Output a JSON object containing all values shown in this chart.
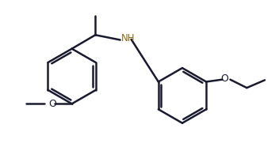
{
  "bg_color": "#ffffff",
  "line_color": "#1a1a2e",
  "nh_color": "#8B6914",
  "line_width": 1.8,
  "fig_width": 3.52,
  "fig_height": 1.86,
  "dpi": 100,
  "xlim": [
    0,
    10
  ],
  "ylim": [
    0,
    5.3
  ]
}
